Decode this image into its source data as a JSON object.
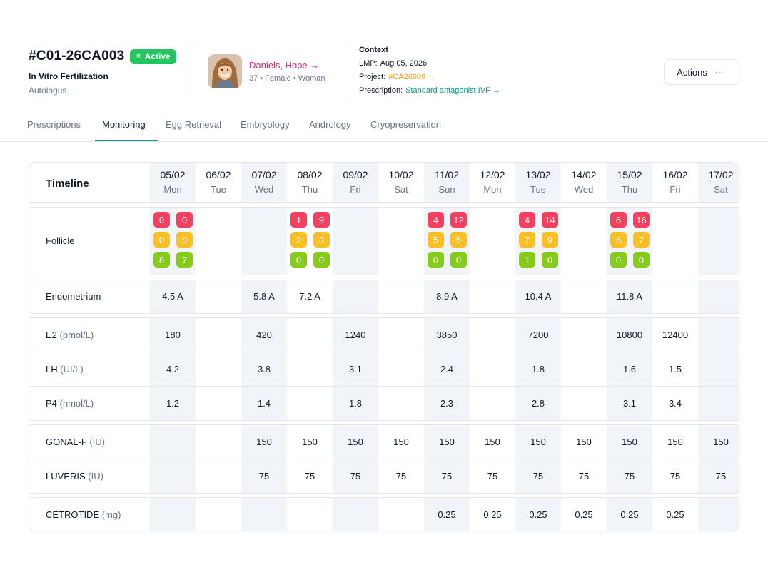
{
  "case": {
    "id": "#C01-26CA003",
    "status": "Active",
    "type": "In Vitro Fertilization",
    "subtype": "Autologus"
  },
  "patient": {
    "name": "Daniels, Hope →",
    "meta": "37 • Female • Woman"
  },
  "context": {
    "title": "Context",
    "lmp_label": "LMP:",
    "lmp_value": "Aug 05, 2026",
    "project_label": "Project:",
    "project_value": "#CA26009 →",
    "prescription_label": "Prescription:",
    "prescription_value": "Standard antagonist IVF →"
  },
  "actions": {
    "label": "Actions",
    "icon": "more-dots-icon"
  },
  "tabs": [
    {
      "label": "Prescriptions",
      "active": false
    },
    {
      "label": "Monitoring",
      "active": true
    },
    {
      "label": "Egg Retrieval",
      "active": false
    },
    {
      "label": "Embryology",
      "active": false
    },
    {
      "label": "Andrology",
      "active": false
    },
    {
      "label": "Cryopreservation",
      "active": false
    }
  ],
  "table": {
    "timeline_label": "Timeline",
    "days": [
      {
        "date": "05/02",
        "day": "Mon"
      },
      {
        "date": "06/02",
        "day": "Tue"
      },
      {
        "date": "07/02",
        "day": "Wed"
      },
      {
        "date": "08/02",
        "day": "Thu"
      },
      {
        "date": "09/02",
        "day": "Fri"
      },
      {
        "date": "10/02",
        "day": "Sat"
      },
      {
        "date": "11/02",
        "day": "Sun"
      },
      {
        "date": "12/02",
        "day": "Mon"
      },
      {
        "date": "13/02",
        "day": "Tue"
      },
      {
        "date": "14/02",
        "day": "Wed"
      },
      {
        "date": "15/02",
        "day": "Thu"
      },
      {
        "date": "16/02",
        "day": "Fri"
      },
      {
        "date": "17/02",
        "day": "Sat"
      }
    ],
    "follicle": {
      "label": "Follicle",
      "colors": {
        "red": "#f43f5e",
        "amber": "#fbbf24",
        "green": "#84cc16"
      },
      "values": [
        [
          [
            "0",
            "0"
          ],
          [
            "0",
            "0"
          ],
          [
            "8",
            "7"
          ]
        ],
        null,
        null,
        [
          [
            "1",
            "9"
          ],
          [
            "2",
            "3"
          ],
          [
            "0",
            "0"
          ]
        ],
        null,
        null,
        [
          [
            "4",
            "12"
          ],
          [
            "5",
            "5"
          ],
          [
            "0",
            "0"
          ]
        ],
        null,
        [
          [
            "4",
            "14"
          ],
          [
            "7",
            "9"
          ],
          [
            "1",
            "0"
          ]
        ],
        null,
        [
          [
            "6",
            "16"
          ],
          [
            "6",
            "7"
          ],
          [
            "0",
            "0"
          ]
        ],
        null,
        null
      ]
    },
    "endometrium": {
      "label": "Endometrium",
      "values": [
        "4.5 A",
        "",
        "5.8 A",
        "7.2 A",
        "",
        "",
        "8.9 A",
        "",
        "10.4 A",
        "",
        "11.8 A",
        "",
        ""
      ]
    },
    "e2": {
      "label": "E2",
      "unit": "(pmol/L)",
      "values": [
        "180",
        "",
        "420",
        "",
        "1240",
        "",
        "3850",
        "",
        "7200",
        "",
        "10800",
        "12400",
        ""
      ]
    },
    "lh": {
      "label": "LH",
      "unit": "(UI/L)",
      "values": [
        "4.2",
        "",
        "3.8",
        "",
        "3.1",
        "",
        "2.4",
        "",
        "1.8",
        "",
        "1.6",
        "1.5",
        ""
      ]
    },
    "p4": {
      "label": "P4",
      "unit": "(nmol/L)",
      "values": [
        "1.2",
        "",
        "1.4",
        "",
        "1.8",
        "",
        "2.3",
        "",
        "2.8",
        "",
        "3.1",
        "3.4",
        ""
      ]
    },
    "gonal": {
      "label": "GONAL-F",
      "unit": "(IU)",
      "values": [
        "",
        "",
        "150",
        "150",
        "150",
        "150",
        "150",
        "150",
        "150",
        "150",
        "150",
        "150",
        "150"
      ]
    },
    "luveris": {
      "label": "LUVERIS",
      "unit": "(IU)",
      "values": [
        "",
        "",
        "75",
        "75",
        "75",
        "75",
        "75",
        "75",
        "75",
        "75",
        "75",
        "75",
        "75"
      ]
    },
    "cetrotide": {
      "label": "CETROTIDE",
      "unit": "(mg)",
      "values": [
        "",
        "",
        "",
        "",
        "",
        "",
        "0.25",
        "0.25",
        "0.25",
        "0.25",
        "0.25",
        "0.25",
        ""
      ]
    }
  }
}
